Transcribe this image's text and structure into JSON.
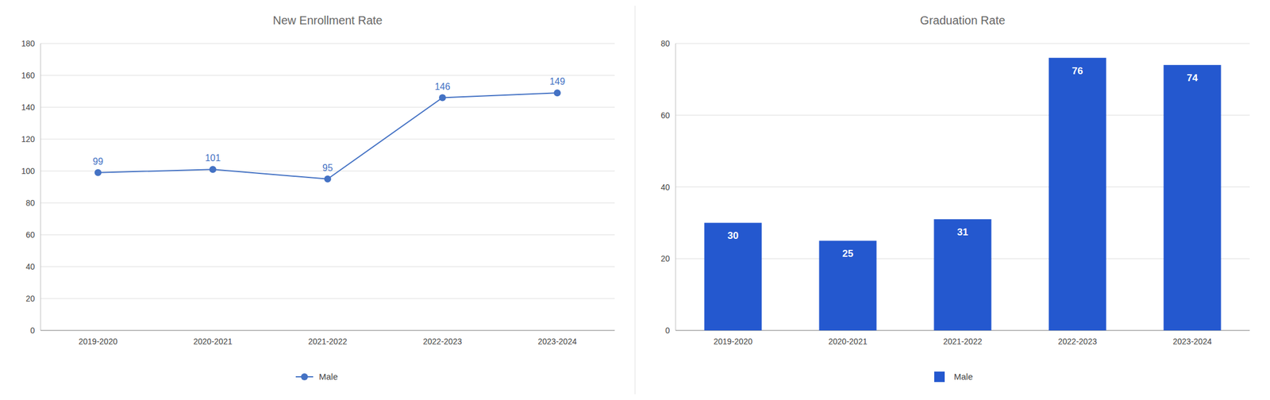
{
  "chart_data": [
    {
      "type": "line",
      "title": "New Enrollment Rate",
      "categories": [
        "2019-2020",
        "2020-2021",
        "2021-2022",
        "2022-2023",
        "2023-2024"
      ],
      "series": [
        {
          "name": "Male",
          "color": "#4472C4",
          "marker": "circle",
          "values": [
            99,
            101,
            95,
            146,
            149
          ]
        }
      ],
      "ylim": [
        0,
        180
      ],
      "yticks": [
        0,
        20,
        40,
        60,
        80,
        100,
        120,
        140,
        160,
        180
      ],
      "grid": true,
      "data_labels": true,
      "legend": "bottom"
    },
    {
      "type": "bar",
      "title": "Graduation Rate",
      "categories": [
        "2019-2020",
        "2020-2021",
        "2021-2022",
        "2022-2023",
        "2023-2024"
      ],
      "series": [
        {
          "name": "Male",
          "color": "#2458CF",
          "values": [
            30,
            25,
            31,
            76,
            74
          ]
        }
      ],
      "ylim": [
        0,
        80
      ],
      "yticks": [
        0,
        20,
        40,
        60,
        80
      ],
      "grid": true,
      "data_labels": true,
      "legend": "bottom"
    }
  ]
}
